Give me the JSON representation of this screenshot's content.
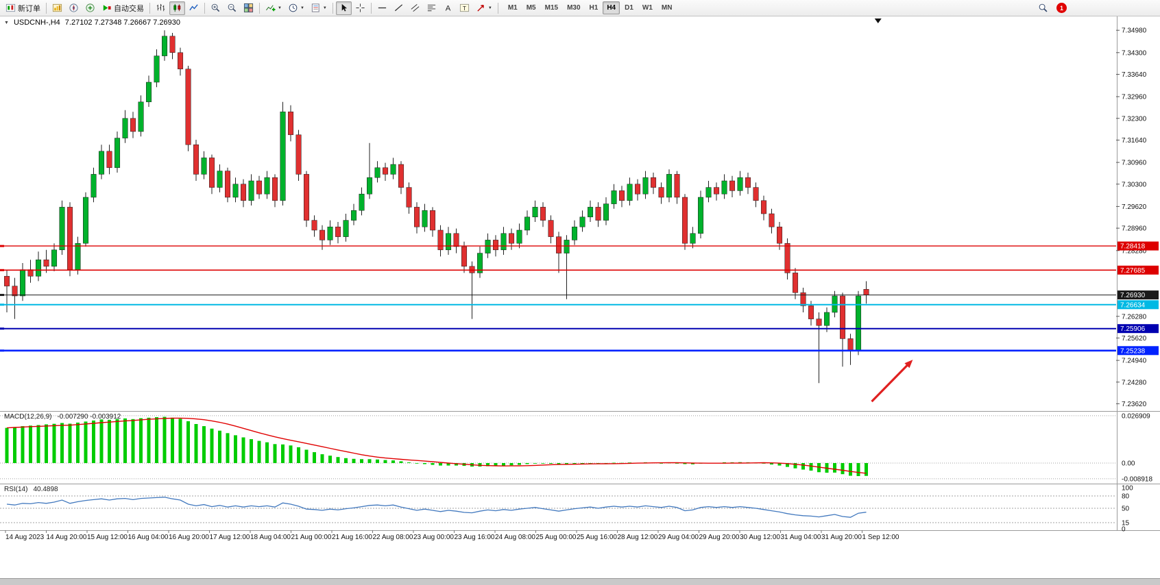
{
  "toolbar": {
    "new_order_label": "新订单",
    "autotrading_label": "自动交易",
    "timeframes": [
      "M1",
      "M5",
      "M15",
      "M30",
      "H1",
      "H4",
      "D1",
      "W1",
      "MN"
    ],
    "active_timeframe": "H4",
    "notification_count": "1"
  },
  "icons": {
    "collapse_triangle": "▼",
    "caret_down": "▼",
    "text_tool": "A",
    "label_tool": "T"
  },
  "colors": {
    "bull": "#00b22c",
    "bear": "#e03030",
    "wick": "#222222",
    "macd_hist": "#00cc00",
    "macd_signal": "#e00000",
    "rsi_line": "#4178be",
    "axis_text": "#111111",
    "grid_dash": "#a0a0a0",
    "arrow": "#e02020",
    "separator": "#9a9a9a"
  },
  "chart_data": {
    "type": "candlestick",
    "title_text": "USDCNH-,H4",
    "ohlc_text": "7.27102 7.27348 7.26667 7.26930",
    "symbol": "USDCNH-",
    "timeframe": "H4",
    "ylim": [
      7.234,
      7.354
    ],
    "shift_marker_bar": 110.5,
    "x_labels": [
      "14 Aug 2023",
      "14 Aug 20:00",
      "15 Aug 12:00",
      "16 Aug 04:00",
      "16 Aug 20:00",
      "17 Aug 12:00",
      "18 Aug 04:00",
      "21 Aug 00:00",
      "21 Aug 16:00",
      "22 Aug 08:00",
      "23 Aug 00:00",
      "23 Aug 16:00",
      "24 Aug 08:00",
      "25 Aug 00:00",
      "25 Aug 16:00",
      "28 Aug 12:00",
      "29 Aug 04:00",
      "29 Aug 20:00",
      "30 Aug 12:00",
      "31 Aug 04:00",
      "31 Aug 20:00",
      "1 Sep 12:00"
    ],
    "y_ticks": [
      "7.34980",
      "7.34300",
      "7.33640",
      "7.32960",
      "7.32300",
      "7.31640",
      "7.30960",
      "7.30300",
      "7.29620",
      "7.28960",
      "7.28280",
      "7.26280",
      "7.25620",
      "7.24940",
      "7.24280",
      "7.23620"
    ],
    "hlines": [
      {
        "price": 7.28418,
        "color": "#dd0000",
        "width": 1.4,
        "label": "7.28418"
      },
      {
        "price": 7.27685,
        "color": "#dd0000",
        "width": 1.7,
        "label": "7.27685"
      },
      {
        "price": 7.2693,
        "color": "#1a1a1a",
        "width": 1.0,
        "label": "7.26930",
        "role": "current-price"
      },
      {
        "price": 7.26634,
        "color": "#00b9e4",
        "width": 2.0,
        "label": "7.26634"
      },
      {
        "price": 7.25906,
        "color": "#0000b0",
        "width": 2.0,
        "label": "7.25906"
      },
      {
        "price": 7.25238,
        "color": "#0022ff",
        "width": 2.6,
        "label": "7.25238"
      }
    ],
    "candles": [
      [
        7.275,
        7.277,
        7.264,
        7.272
      ],
      [
        7.272,
        7.2745,
        7.262,
        7.269
      ],
      [
        7.269,
        7.279,
        7.2675,
        7.277
      ],
      [
        7.277,
        7.28,
        7.273,
        7.275
      ],
      [
        7.275,
        7.2825,
        7.2735,
        7.28
      ],
      [
        7.28,
        7.283,
        7.276,
        7.278
      ],
      [
        7.278,
        7.285,
        7.2765,
        7.283
      ],
      [
        7.283,
        7.298,
        7.2815,
        7.296
      ],
      [
        7.296,
        7.2975,
        7.275,
        7.277
      ],
      [
        7.277,
        7.287,
        7.2755,
        7.285
      ],
      [
        7.285,
        7.3005,
        7.284,
        7.299
      ],
      [
        7.299,
        7.308,
        7.2975,
        7.306
      ],
      [
        7.306,
        7.315,
        7.3045,
        7.313
      ],
      [
        7.313,
        7.315,
        7.306,
        7.308
      ],
      [
        7.308,
        7.319,
        7.3065,
        7.317
      ],
      [
        7.317,
        7.3255,
        7.3155,
        7.323
      ],
      [
        7.323,
        7.325,
        7.317,
        7.319
      ],
      [
        7.319,
        7.33,
        7.3175,
        7.328
      ],
      [
        7.328,
        7.336,
        7.3265,
        7.334
      ],
      [
        7.334,
        7.344,
        7.3325,
        7.342
      ],
      [
        7.342,
        7.3498,
        7.3405,
        7.348
      ],
      [
        7.348,
        7.349,
        7.341,
        7.343
      ],
      [
        7.343,
        7.3445,
        7.336,
        7.338
      ],
      [
        7.338,
        7.339,
        7.313,
        7.315
      ],
      [
        7.315,
        7.3165,
        7.304,
        7.306
      ],
      [
        7.306,
        7.313,
        7.3045,
        7.311
      ],
      [
        7.311,
        7.312,
        7.3,
        7.302
      ],
      [
        7.302,
        7.309,
        7.3005,
        7.307
      ],
      [
        7.307,
        7.308,
        7.2975,
        7.299
      ],
      [
        7.299,
        7.305,
        7.2975,
        7.303
      ],
      [
        7.303,
        7.3045,
        7.296,
        7.298
      ],
      [
        7.298,
        7.306,
        7.2965,
        7.304
      ],
      [
        7.304,
        7.3055,
        7.2985,
        7.3
      ],
      [
        7.3,
        7.307,
        7.2985,
        7.305
      ],
      [
        7.305,
        7.306,
        7.296,
        7.298
      ],
      [
        7.298,
        7.328,
        7.2965,
        7.325
      ],
      [
        7.325,
        7.327,
        7.316,
        7.318
      ],
      [
        7.318,
        7.3195,
        7.304,
        7.306
      ],
      [
        7.306,
        7.307,
        7.29,
        7.292
      ],
      [
        7.292,
        7.2935,
        7.287,
        7.289
      ],
      [
        7.289,
        7.2905,
        7.283,
        7.286
      ],
      [
        7.286,
        7.292,
        7.2845,
        7.29
      ],
      [
        7.29,
        7.2915,
        7.285,
        7.287
      ],
      [
        7.287,
        7.294,
        7.2855,
        7.292
      ],
      [
        7.292,
        7.297,
        7.2905,
        7.295
      ],
      [
        7.295,
        7.302,
        7.2935,
        7.3
      ],
      [
        7.3,
        7.3155,
        7.2985,
        7.305
      ],
      [
        7.305,
        7.31,
        7.3035,
        7.308
      ],
      [
        7.308,
        7.3095,
        7.304,
        7.306
      ],
      [
        7.306,
        7.311,
        7.3045,
        7.309
      ],
      [
        7.309,
        7.31,
        7.3,
        7.302
      ],
      [
        7.302,
        7.3035,
        7.294,
        7.296
      ],
      [
        7.296,
        7.2975,
        7.288,
        7.29
      ],
      [
        7.29,
        7.297,
        7.2885,
        7.295
      ],
      [
        7.295,
        7.296,
        7.287,
        7.289
      ],
      [
        7.289,
        7.2905,
        7.281,
        7.283
      ],
      [
        7.283,
        7.29,
        7.2815,
        7.288
      ],
      [
        7.288,
        7.2895,
        7.282,
        7.284
      ],
      [
        7.284,
        7.2855,
        7.276,
        7.278
      ],
      [
        7.278,
        7.2795,
        7.262,
        7.276
      ],
      [
        7.276,
        7.284,
        7.2745,
        7.282
      ],
      [
        7.282,
        7.288,
        7.2805,
        7.286
      ],
      [
        7.286,
        7.2875,
        7.281,
        7.283
      ],
      [
        7.283,
        7.29,
        7.2815,
        7.288
      ],
      [
        7.288,
        7.2895,
        7.283,
        7.285
      ],
      [
        7.285,
        7.291,
        7.2835,
        7.289
      ],
      [
        7.289,
        7.295,
        7.2875,
        7.293
      ],
      [
        7.293,
        7.298,
        7.2915,
        7.296
      ],
      [
        7.296,
        7.2975,
        7.29,
        7.292
      ],
      [
        7.292,
        7.2935,
        7.285,
        7.287
      ],
      [
        7.287,
        7.2885,
        7.276,
        7.282
      ],
      [
        7.282,
        7.2875,
        7.268,
        7.286
      ],
      [
        7.286,
        7.292,
        7.2845,
        7.29
      ],
      [
        7.29,
        7.295,
        7.2885,
        7.293
      ],
      [
        7.293,
        7.298,
        7.2915,
        7.296
      ],
      [
        7.296,
        7.2975,
        7.29,
        7.292
      ],
      [
        7.292,
        7.299,
        7.2905,
        7.297
      ],
      [
        7.297,
        7.303,
        7.2955,
        7.301
      ],
      [
        7.301,
        7.3025,
        7.296,
        7.298
      ],
      [
        7.298,
        7.305,
        7.2965,
        7.303
      ],
      [
        7.303,
        7.3045,
        7.298,
        7.3
      ],
      [
        7.3,
        7.307,
        7.2985,
        7.305
      ],
      [
        7.305,
        7.3065,
        7.3,
        7.302
      ],
      [
        7.302,
        7.3035,
        7.297,
        7.299
      ],
      [
        7.299,
        7.3075,
        7.2975,
        7.306
      ],
      [
        7.306,
        7.307,
        7.297,
        7.299
      ],
      [
        7.299,
        7.3,
        7.283,
        7.285
      ],
      [
        7.285,
        7.29,
        7.2835,
        7.288
      ],
      [
        7.288,
        7.301,
        7.2865,
        7.299
      ],
      [
        7.299,
        7.304,
        7.2975,
        7.302
      ],
      [
        7.302,
        7.3035,
        7.298,
        7.3
      ],
      [
        7.3,
        7.306,
        7.2985,
        7.304
      ],
      [
        7.304,
        7.3055,
        7.299,
        7.301
      ],
      [
        7.301,
        7.307,
        7.2995,
        7.305
      ],
      [
        7.305,
        7.3065,
        7.3,
        7.302
      ],
      [
        7.302,
        7.3035,
        7.296,
        7.298
      ],
      [
        7.298,
        7.2995,
        7.292,
        7.294
      ],
      [
        7.294,
        7.2955,
        7.288,
        7.29
      ],
      [
        7.29,
        7.2915,
        7.283,
        7.285
      ],
      [
        7.285,
        7.2865,
        7.274,
        7.276
      ],
      [
        7.276,
        7.2775,
        7.268,
        7.27
      ],
      [
        7.27,
        7.2715,
        7.264,
        7.266
      ],
      [
        7.266,
        7.2675,
        7.26,
        7.262
      ],
      [
        7.262,
        7.264,
        7.2425,
        7.26
      ],
      [
        7.26,
        7.2655,
        7.258,
        7.264
      ],
      [
        7.264,
        7.2705,
        7.2625,
        7.269
      ],
      [
        7.269,
        7.27,
        7.2475,
        7.256
      ],
      [
        7.256,
        7.2575,
        7.248,
        7.2525
      ],
      [
        7.2525,
        7.2705,
        7.251,
        7.269
      ],
      [
        7.27102,
        7.27348,
        7.26667,
        7.2693
      ]
    ],
    "indicators": [
      {
        "type": "bar+line",
        "name": "MACD(12,26,9)",
        "values_text": "-0.007290 -0.003912",
        "ylim": [
          -0.0117,
          0.0296
        ],
        "scale_ticks": [
          "0.026909",
          "0.00",
          "-0.008918"
        ],
        "signal": "sma9",
        "hist": [
          0.02,
          0.0205,
          0.021,
          0.0213,
          0.0216,
          0.022,
          0.0223,
          0.0228,
          0.0224,
          0.023,
          0.0236,
          0.0242,
          0.0248,
          0.0246,
          0.025,
          0.0254,
          0.025,
          0.0255,
          0.0258,
          0.0261,
          0.0263,
          0.0258,
          0.0252,
          0.0238,
          0.0222,
          0.021,
          0.0196,
          0.0184,
          0.017,
          0.0158,
          0.0146,
          0.0136,
          0.0126,
          0.0118,
          0.0108,
          0.0106,
          0.01,
          0.009,
          0.0076,
          0.0062,
          0.005,
          0.0042,
          0.0034,
          0.0028,
          0.0024,
          0.0022,
          0.0022,
          0.002,
          0.0017,
          0.0015,
          0.001,
          0.0004,
          -0.0002,
          -0.0006,
          -0.001,
          -0.0014,
          -0.0014,
          -0.0014,
          -0.0016,
          -0.002,
          -0.002,
          -0.0018,
          -0.0017,
          -0.0014,
          -0.0013,
          -0.001,
          -0.0006,
          -0.0002,
          -0.0002,
          -0.0004,
          -0.0008,
          -0.0008,
          -0.0006,
          -0.0004,
          -0.0002,
          -0.0002,
          0.0,
          0.0002,
          0.0001,
          0.0003,
          0.0002,
          0.0004,
          0.0003,
          0.0,
          0.0002,
          -0.0001,
          -0.0006,
          -0.0007,
          -0.0003,
          0.0001,
          0.0002,
          0.0004,
          0.0004,
          0.0005,
          0.0004,
          0.0001,
          -0.0003,
          -0.0008,
          -0.0014,
          -0.0022,
          -0.003,
          -0.0037,
          -0.0043,
          -0.0052,
          -0.0055,
          -0.0054,
          -0.0063,
          -0.0072,
          -0.0074,
          -0.0073
        ]
      },
      {
        "type": "line",
        "name": "RSI(14)",
        "value_text": "40.4898",
        "ylim": [
          0,
          100
        ],
        "scale_ticks": [
          "100",
          "80",
          "50",
          "15",
          "0"
        ],
        "levels": [
          80,
          50,
          15
        ],
        "values": [
          60,
          58,
          62,
          61,
          64,
          62,
          65,
          70,
          62,
          66,
          69,
          71,
          73,
          70,
          73,
          74,
          71,
          74,
          75,
          76,
          77,
          73,
          70,
          60,
          56,
          59,
          54,
          57,
          53,
          56,
          53,
          56,
          54,
          56,
          53,
          63,
          60,
          55,
          48,
          47,
          45,
          48,
          46,
          49,
          51,
          54,
          57,
          58,
          56,
          58,
          53,
          49,
          45,
          48,
          45,
          42,
          45,
          43,
          40,
          39,
          43,
          46,
          44,
          47,
          45,
          48,
          50,
          52,
          49,
          46,
          43,
          46,
          49,
          51,
          53,
          50,
          53,
          55,
          53,
          55,
          53,
          56,
          54,
          52,
          55,
          52,
          44,
          46,
          52,
          54,
          52,
          54,
          52,
          54,
          52,
          50,
          47,
          44,
          41,
          37,
          34,
          32,
          31,
          29,
          32,
          35,
          30,
          28,
          38,
          40.5
        ]
      }
    ],
    "annotations": [
      {
        "type": "arrow",
        "color": "#e02020",
        "from": {
          "bar": 109.7,
          "price": 7.2369
        },
        "to": {
          "bar": 114.9,
          "price": 7.2496
        }
      }
    ]
  }
}
